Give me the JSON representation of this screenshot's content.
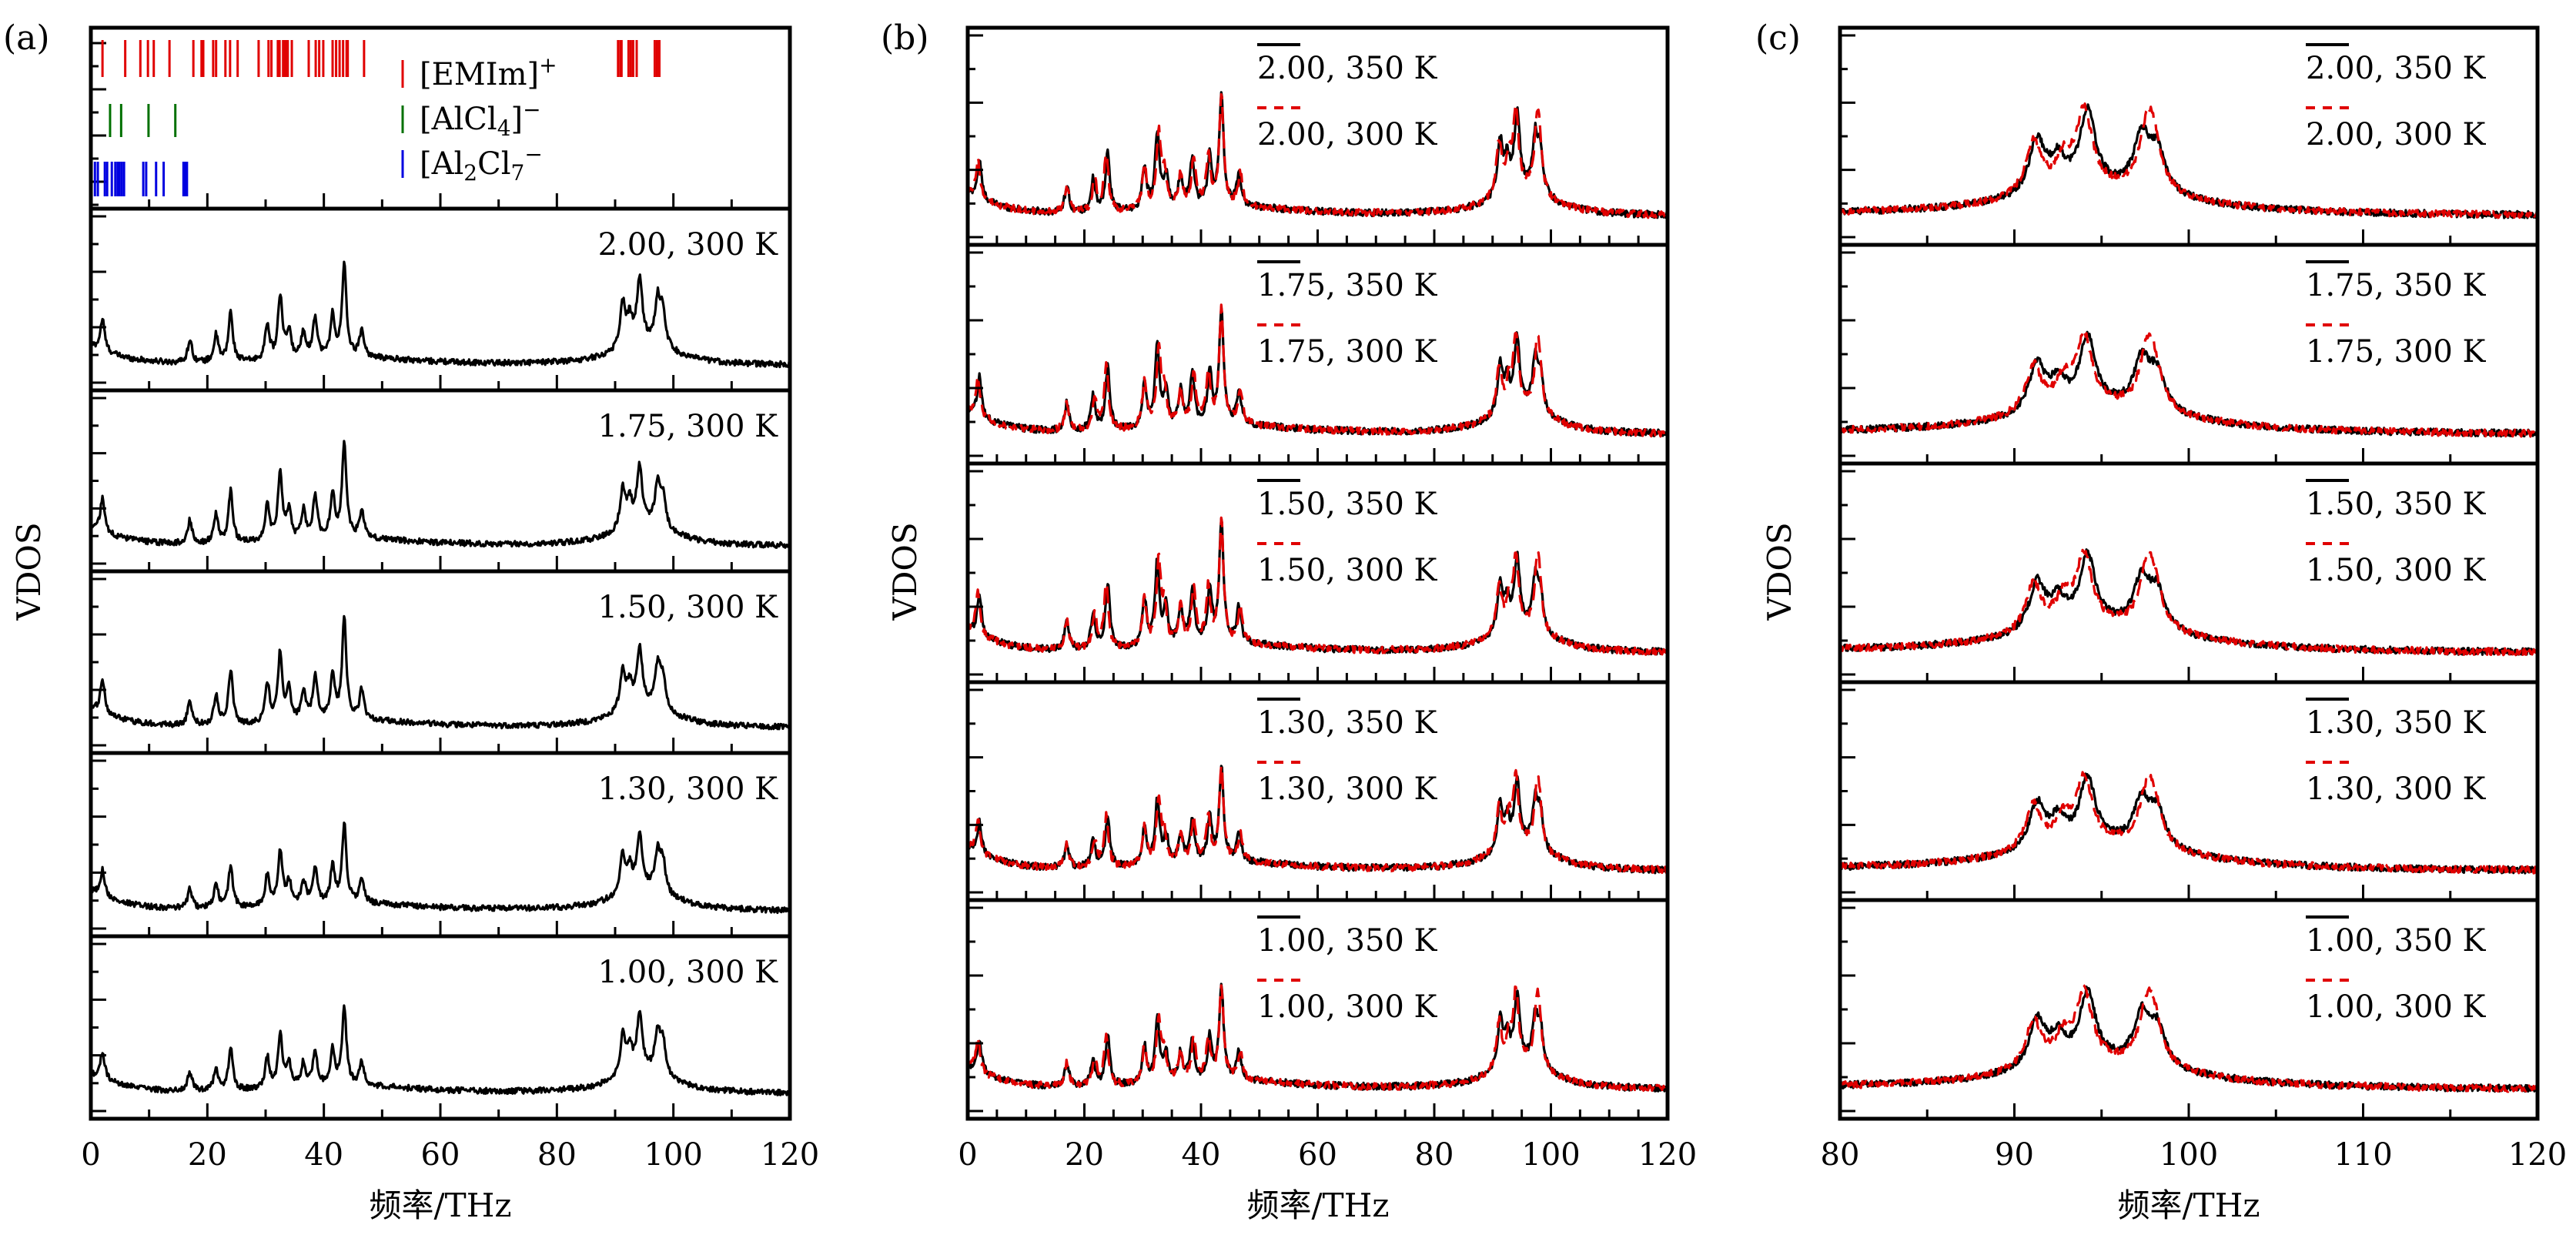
{
  "chart_data": [
    {
      "type": "line",
      "panel_label": "(a)",
      "xlabel": "频率/THz",
      "ylabel": "VDOS",
      "xlim": [
        0,
        120
      ],
      "xticks": [
        0,
        20,
        40,
        60,
        80,
        100,
        120
      ],
      "rug": {
        "series": [
          {
            "name": "[EMIm]+",
            "color": "#e00000",
            "positions": [
              2.0,
              5.9,
              8.5,
              9.8,
              10.8,
              13.5,
              17.6,
              19.0,
              19.3,
              21.0,
              21.5,
              23.1,
              23.9,
              25.2,
              28.8,
              30.5,
              31.0,
              32.1,
              32.4,
              33.0,
              33.3,
              33.6,
              33.8,
              34.5,
              37.4,
              38.6,
              39.2,
              39.9,
              41.5,
              42.1,
              42.7,
              43.3,
              43.9,
              44.1,
              46.9,
              90.5,
              90.9,
              91.1,
              92.3,
              92.7,
              93.1,
              93.7,
              96.8,
              97.2,
              97.6
            ]
          },
          {
            "name": "[AlCl4]−",
            "color": "#007000",
            "positions": [
              3.3,
              5.2,
              9.9,
              14.5
            ]
          },
          {
            "name": "[Al2Cl7]−",
            "color": "#0000e0",
            "positions": [
              0.7,
              1.2,
              2.4,
              2.8,
              3.6,
              4.2,
              4.6,
              4.9,
              5.3,
              5.7,
              9.0,
              9.5,
              11.2,
              12.5,
              15.9,
              16.2,
              16.5
            ]
          }
        ],
        "legend": [
          {
            "base": "[EMIm]",
            "sub": "",
            "mid": "",
            "sub2": "",
            "sup": "+",
            "color": "#e00000"
          },
          {
            "base": "[AlCl",
            "sub": "4",
            "mid": "]",
            "sub2": "",
            "sup": "−",
            "color": "#007000"
          },
          {
            "base": "[Al",
            "sub": "2",
            "mid": "Cl",
            "sub2": "7",
            "sup": "−",
            "color": "#0000e0"
          }
        ]
      },
      "subplots": [
        {
          "label": "2.00, 300 K",
          "series": [
            {
              "name": "2.00, 300 K",
              "color": "#000000",
              "style": "solid"
            }
          ]
        },
        {
          "label": "1.75, 300 K",
          "series": [
            {
              "name": "1.75, 300 K",
              "color": "#000000",
              "style": "solid"
            }
          ]
        },
        {
          "label": "1.50, 300 K",
          "series": [
            {
              "name": "1.50, 300 K",
              "color": "#000000",
              "style": "solid"
            }
          ]
        },
        {
          "label": "1.30, 300 K",
          "series": [
            {
              "name": "1.30, 300 K",
              "color": "#000000",
              "style": "solid"
            }
          ]
        },
        {
          "label": "1.00, 300 K",
          "series": [
            {
              "name": "1.00, 300 K",
              "color": "#000000",
              "style": "solid"
            }
          ]
        }
      ]
    },
    {
      "type": "line",
      "panel_label": "(b)",
      "xlabel": "频率/THz",
      "ylabel": "VDOS",
      "xlim": [
        0,
        120
      ],
      "xticks": [
        0,
        20,
        40,
        60,
        80,
        100,
        120
      ],
      "subplots": [
        {
          "legend": [
            "2.00, 350 K",
            "2.00, 300 K"
          ],
          "series": [
            {
              "name": "2.00, 350 K",
              "color": "#000000",
              "style": "solid"
            },
            {
              "name": "2.00, 300 K",
              "color": "#e00000",
              "style": "dashed"
            }
          ]
        },
        {
          "legend": [
            "1.75, 350 K",
            "1.75, 300 K"
          ],
          "series": [
            {
              "name": "1.75, 350 K",
              "color": "#000000",
              "style": "solid"
            },
            {
              "name": "1.75, 300 K",
              "color": "#e00000",
              "style": "dashed"
            }
          ]
        },
        {
          "legend": [
            "1.50, 350 K",
            "1.50, 300 K"
          ],
          "series": [
            {
              "name": "1.50, 350 K",
              "color": "#000000",
              "style": "solid"
            },
            {
              "name": "1.50, 300 K",
              "color": "#e00000",
              "style": "dashed"
            }
          ]
        },
        {
          "legend": [
            "1.30, 350 K",
            "1.30, 300 K"
          ],
          "series": [
            {
              "name": "1.30, 350 K",
              "color": "#000000",
              "style": "solid"
            },
            {
              "name": "1.30, 300 K",
              "color": "#e00000",
              "style": "dashed"
            }
          ]
        },
        {
          "legend": [
            "1.00, 350 K",
            "1.00, 300 K"
          ],
          "series": [
            {
              "name": "1.00, 350 K",
              "color": "#000000",
              "style": "solid"
            },
            {
              "name": "1.00, 300 K",
              "color": "#e00000",
              "style": "dashed"
            }
          ]
        }
      ]
    },
    {
      "type": "line",
      "panel_label": "(c)",
      "xlabel": "频率/THz",
      "ylabel": "VDOS",
      "xlim": [
        80,
        120
      ],
      "xticks": [
        80,
        90,
        100,
        110,
        120
      ],
      "subplots": [
        {
          "legend": [
            "2.00, 350 K",
            "2.00, 300 K"
          ],
          "series": [
            {
              "name": "2.00, 350 K",
              "color": "#000000",
              "style": "solid"
            },
            {
              "name": "2.00, 300 K",
              "color": "#e00000",
              "style": "dashed"
            }
          ]
        },
        {
          "legend": [
            "1.75, 350 K",
            "1.75, 300 K"
          ],
          "series": [
            {
              "name": "1.75, 350 K",
              "color": "#000000",
              "style": "solid"
            },
            {
              "name": "1.75, 300 K",
              "color": "#e00000",
              "style": "dashed"
            }
          ]
        },
        {
          "legend": [
            "1.50, 350 K",
            "1.50, 300 K"
          ],
          "series": [
            {
              "name": "1.50, 350 K",
              "color": "#000000",
              "style": "solid"
            },
            {
              "name": "1.50, 300 K",
              "color": "#e00000",
              "style": "dashed"
            }
          ]
        },
        {
          "legend": [
            "1.30, 350 K",
            "1.30, 300 K"
          ],
          "series": [
            {
              "name": "1.30, 350 K",
              "color": "#000000",
              "style": "solid"
            },
            {
              "name": "1.30, 300 K",
              "color": "#e00000",
              "style": "dashed"
            }
          ]
        },
        {
          "legend": [
            "1.00, 350 K",
            "1.00, 300 K"
          ],
          "series": [
            {
              "name": "1.00, 350 K",
              "color": "#000000",
              "style": "solid"
            },
            {
              "name": "1.00, 300 K",
              "color": "#e00000",
              "style": "dashed"
            }
          ]
        }
      ]
    }
  ],
  "spectra": {
    "peaks_low": [
      [
        2.0,
        0.35
      ],
      [
        17.0,
        0.25
      ],
      [
        21.5,
        0.3
      ],
      [
        24.0,
        0.55
      ],
      [
        30.3,
        0.4
      ],
      [
        32.5,
        0.7
      ],
      [
        34.0,
        0.3
      ],
      [
        36.5,
        0.3
      ],
      [
        38.5,
        0.45
      ],
      [
        41.5,
        0.45
      ],
      [
        43.5,
        1.0
      ],
      [
        46.5,
        0.3
      ]
    ],
    "peaks_high": [
      [
        91.3,
        0.45
      ],
      [
        92.5,
        0.25
      ],
      [
        94.2,
        0.65
      ],
      [
        97.3,
        0.45
      ],
      [
        98.2,
        0.35
      ]
    ],
    "peak_scale_a": [
      1.0,
      1.05,
      1.1,
      0.85,
      0.85
    ],
    "high_scale_a": [
      1.0,
      0.9,
      0.9,
      0.85,
      0.9
    ]
  }
}
